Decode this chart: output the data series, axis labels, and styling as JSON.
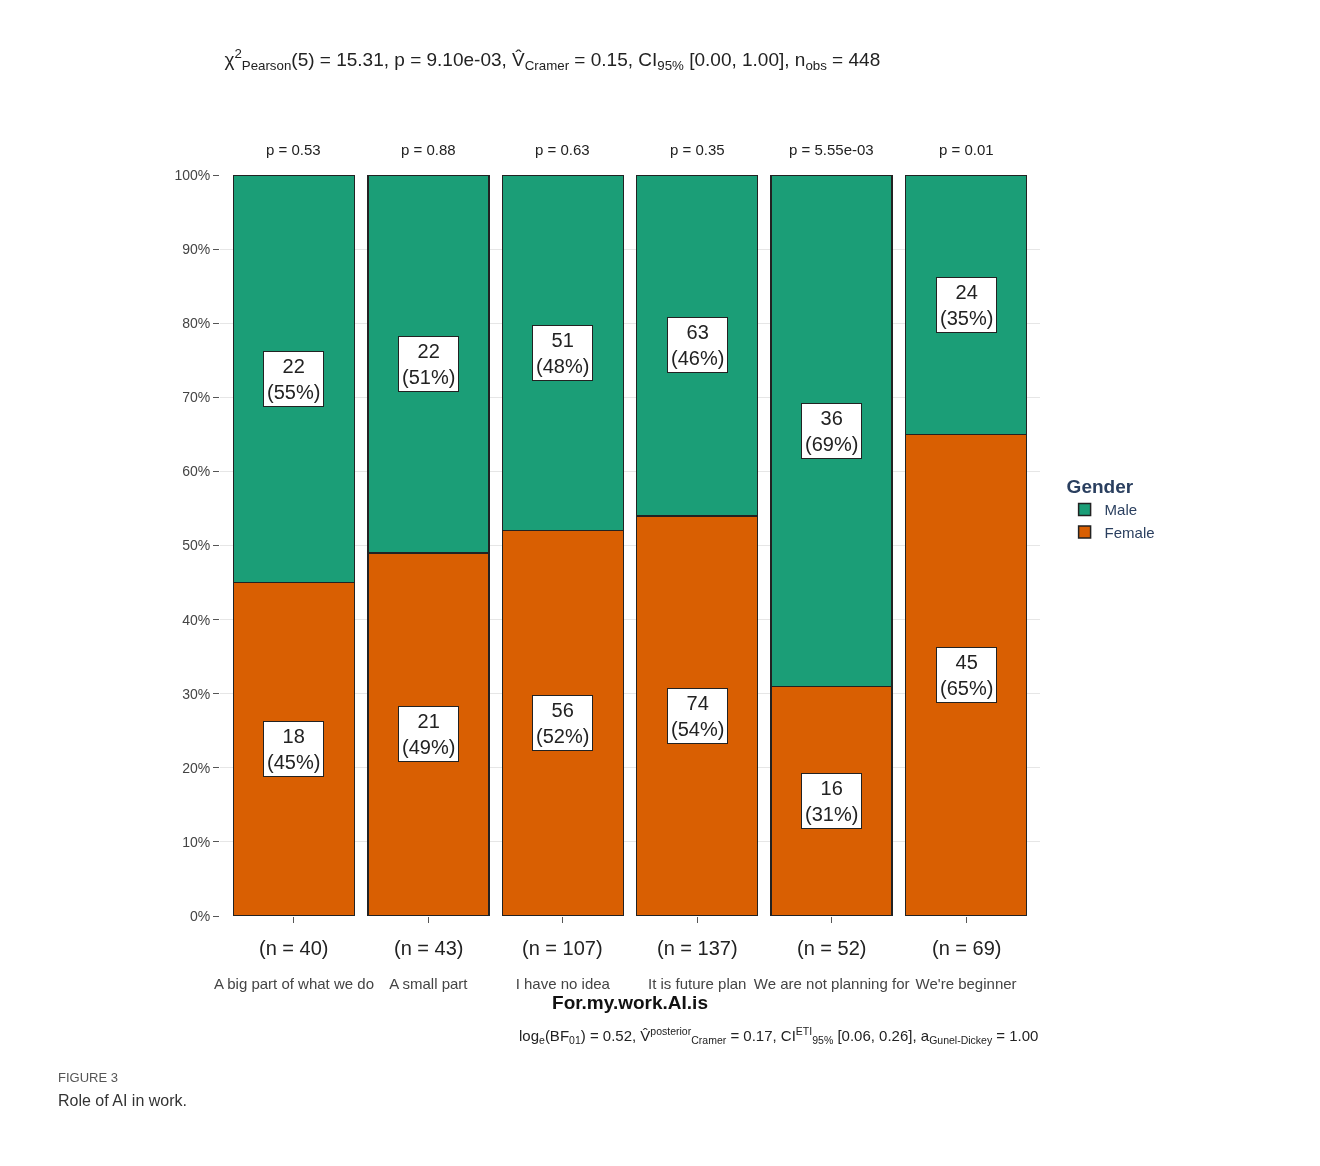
{
  "chart_data": {
    "type": "bar",
    "stacked": true,
    "title": "χ$^{2}$$_{Pearson}$(5) = 15.31, p = 9.10e-03, V̂$_{Cramer}$ = 0.15, CI$_{95%}$ [0.00, 1.00], n$_{obs}$ = 448",
    "subtitle": "log$_{e}$(BF$_{01}$) = 0.52, V̂$^{posterior}$$_{Cramer}$ = 0.17, CI$^{ETI}$$_{95%}$ [0.06, 0.26], a$_{Gunel-Dickey}$ = 1.00",
    "xlabel": "For.my.work.AI.is",
    "legend_title": "Gender",
    "categories": [
      "A big part of what we do",
      "A small part",
      "I have no idea",
      "It is future plan",
      "We are not planning for",
      "We're beginner"
    ],
    "series": [
      {
        "name": "Female",
        "color": "#d95f02",
        "values": [
          45,
          49,
          52,
          54,
          31,
          65
        ],
        "value_labels": [
          "18\n(45%)",
          "21\n(49%)",
          "56\n(52%)",
          "74\n(54%)",
          "16\n(31%)",
          "45\n(65%)"
        ]
      },
      {
        "name": "Male",
        "color": "#1b9e77",
        "values": [
          55,
          51,
          48,
          46,
          69,
          35
        ],
        "value_labels": [
          "22\n(55%)",
          "22\n(51%)",
          "51\n(48%)",
          "63\n(46%)",
          "36\n(69%)",
          "24\n(35%)"
        ]
      }
    ],
    "ylim": [
      0,
      100
    ],
    "yticks": [
      {
        "value": 0,
        "label": "0%"
      },
      {
        "value": 10,
        "label": "10%"
      },
      {
        "value": 20,
        "label": "20%"
      },
      {
        "value": 30,
        "label": "30%"
      },
      {
        "value": 40,
        "label": "40%"
      },
      {
        "value": 50,
        "label": "50%"
      },
      {
        "value": 60,
        "label": "60%"
      },
      {
        "value": 70,
        "label": "70%"
      },
      {
        "value": 80,
        "label": "80%"
      },
      {
        "value": 90,
        "label": "90%"
      },
      {
        "value": 100,
        "label": "100%"
      }
    ],
    "grid": "y",
    "legend": "right",
    "annotations": [
      "p = 0.53",
      "p = 0.88",
      "p = 0.63",
      "p = 0.35",
      "p = 5.55e-03",
      "p = 0.01",
      "(n = 40)",
      "(n = 43)",
      "(n = 107)",
      "(n = 137)",
      "(n = 52)",
      "(n = 69)",
      "FIGURE 3",
      "Role of AI in work."
    ]
  }
}
